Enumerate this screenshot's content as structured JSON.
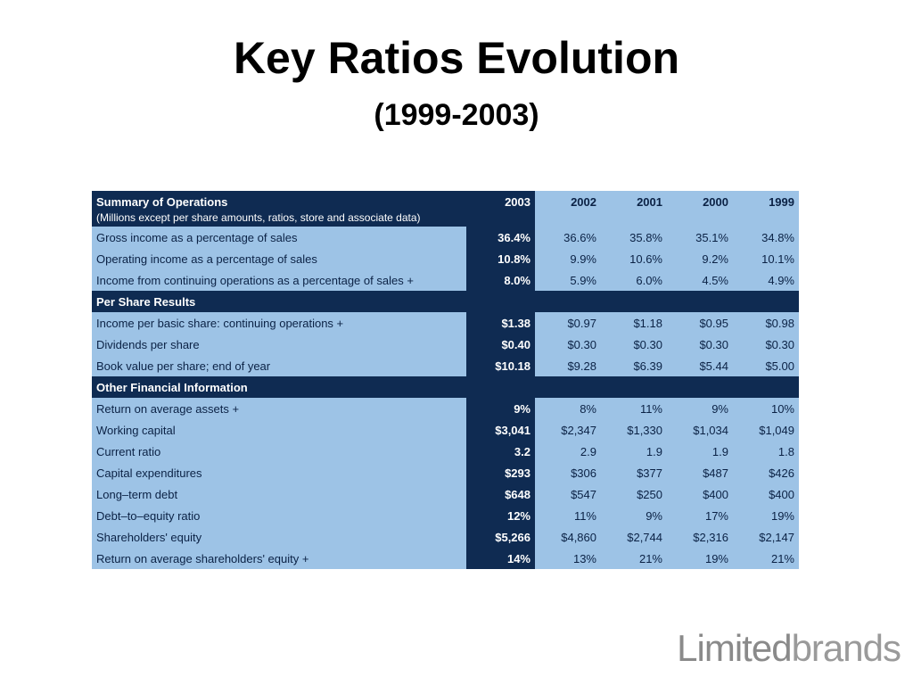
{
  "slide": {
    "title": "Key Ratios Evolution",
    "subtitle": "(1999-2003)"
  },
  "table": {
    "header_title": "Summary of Operations",
    "header_sub": "(Millions except per share amounts, ratios, store and associate data)",
    "years": [
      "2003",
      "2002",
      "2001",
      "2000",
      "1999"
    ],
    "section1_rows": [
      {
        "label": "Gross income as a percentage of sales",
        "values": [
          "36.4%",
          "36.6%",
          "35.8%",
          "35.1%",
          "34.8%"
        ]
      },
      {
        "label": "Operating income as a percentage of sales",
        "values": [
          "10.8%",
          "9.9%",
          "10.6%",
          "9.2%",
          "10.1%"
        ]
      },
      {
        "label": "Income from continuing operations as a percentage of sales +",
        "values": [
          "8.0%",
          "5.9%",
          "6.0%",
          "4.5%",
          "4.9%"
        ]
      }
    ],
    "section2_title": "Per Share Results",
    "section2_rows": [
      {
        "label": "Income per basic share: continuing operations +",
        "values": [
          "$1.38",
          "$0.97",
          "$1.18",
          "$0.95",
          "$0.98"
        ]
      },
      {
        "label": "Dividends per share",
        "values": [
          "$0.40",
          "$0.30",
          "$0.30",
          "$0.30",
          "$0.30"
        ]
      },
      {
        "label": "Book value per share; end of year",
        "values": [
          "$10.18",
          "$9.28",
          "$6.39",
          "$5.44",
          "$5.00"
        ]
      }
    ],
    "section3_title": "Other Financial Information",
    "section3_rows": [
      {
        "label": "Return on average assets +",
        "values": [
          "9%",
          "8%",
          "11%",
          "9%",
          "10%"
        ]
      },
      {
        "label": "Working capital",
        "values": [
          "$3,041",
          "$2,347",
          "$1,330",
          "$1,034",
          "$1,049"
        ]
      },
      {
        "label": "Current ratio",
        "values": [
          "3.2",
          "2.9",
          "1.9",
          "1.9",
          "1.8"
        ]
      },
      {
        "label": "Capital expenditures",
        "values": [
          "$293",
          "$306",
          "$377",
          "$487",
          "$426"
        ]
      },
      {
        "label": "Long–term debt",
        "values": [
          "$648",
          "$547",
          "$250",
          "$400",
          "$400"
        ]
      },
      {
        "label": "Debt–to–equity ratio",
        "values": [
          "12%",
          "11%",
          "9%",
          "17%",
          "19%"
        ]
      },
      {
        "label": "Shareholders' equity",
        "values": [
          "$5,266",
          "$4,860",
          "$2,744",
          "$2,316",
          "$2,147"
        ]
      },
      {
        "label": "Return on average shareholders' equity +",
        "values": [
          "14%",
          "13%",
          "21%",
          "19%",
          "21%"
        ]
      }
    ]
  },
  "logo": {
    "part1": "Limited",
    "part2": "brands"
  },
  "colors": {
    "dark_navy": "#0f2b52",
    "light_blue": "#9dc3e6"
  }
}
